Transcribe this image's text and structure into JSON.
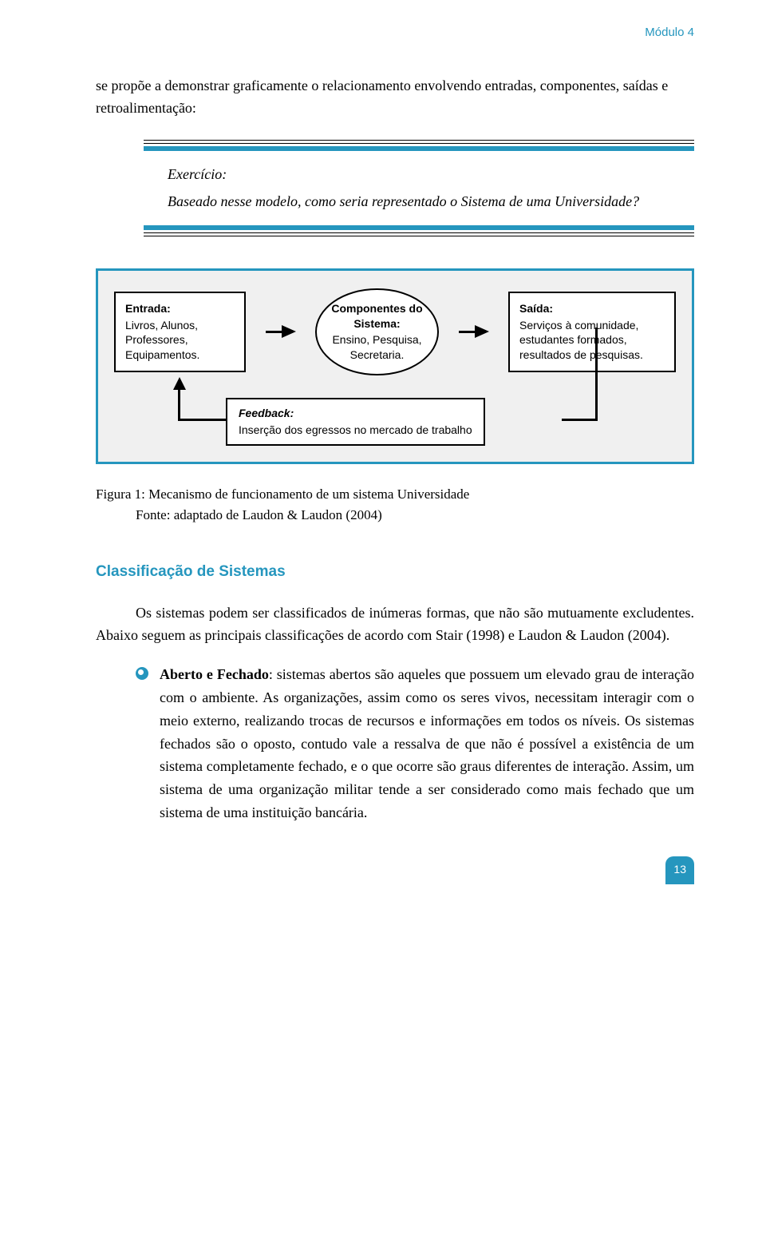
{
  "header": {
    "module": "Módulo 4"
  },
  "intro": "se propõe a demonstrar graficamente o relacionamento envolvendo entradas, componentes, saídas e retroalimentação:",
  "exercise": {
    "title": "Exercício:",
    "body": "Baseado nesse modelo, como seria representado o Sistema de uma Universidade?"
  },
  "diagram": {
    "entrada": {
      "title": "Entrada:",
      "body": "Livros, Alunos, Professores, Equipamentos."
    },
    "componentes": {
      "title": "Componentes do Sistema:",
      "body": "Ensino, Pesquisa, Secretaria."
    },
    "saida": {
      "title": "Saída:",
      "body": "Serviços à comunidade, estudantes formados, resultados de pesquisas."
    },
    "feedback": {
      "title": "Feedback:",
      "body": "Inserção dos egressos no mercado de trabalho"
    }
  },
  "caption": {
    "line1": "Figura 1: Mecanismo de funcionamento de um sistema Universidade",
    "line2": "Fonte: adaptado de Laudon & Laudon (2004)"
  },
  "section": {
    "heading": "Classificação de Sistemas",
    "para": "Os sistemas podem ser classificados de inúmeras formas, que não são mutuamente excludentes. Abaixo seguem as principais classificações de acordo com Stair (1998) e Laudon & Laudon (2004)."
  },
  "bullet": {
    "bold": "Aberto e Fechado",
    "rest": ": sistemas abertos são aqueles que possuem um elevado grau de interação com o ambiente. As organizações, assim como os seres vivos, necessitam interagir com o meio externo, realizando trocas de recursos e informações em todos os níveis. Os sistemas fechados são o oposto, contudo vale a ressalva de que não é possível a existência de um sistema completamente fechado, e o que ocorre são graus diferentes de interação. Assim, um sistema de uma organização militar tende a ser considerado como mais fechado que um sistema de uma instituição bancária."
  },
  "pageNumber": "13",
  "colors": {
    "accent": "#2596be",
    "text": "#000000",
    "box_bg": "#f0f0f0"
  }
}
